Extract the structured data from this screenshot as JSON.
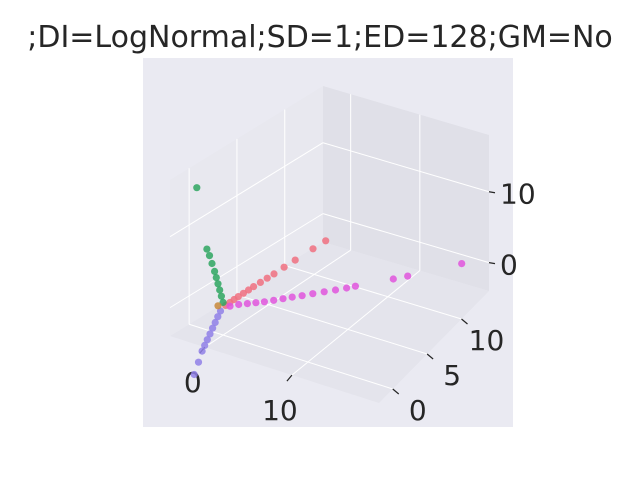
{
  "chart_data": {
    "type": "scatter",
    "projection": "3d",
    "title": ";DI=LogNormal;SD=1;ED=128;GM=No",
    "xlabel": "",
    "ylabel": "",
    "zlabel": "",
    "xlim": [
      -4,
      20
    ],
    "ylim": [
      -2,
      14
    ],
    "zlim": [
      -4,
      18
    ],
    "x_ticks": [
      "0",
      "10"
    ],
    "y_ticks": [
      "0",
      "5",
      "10"
    ],
    "z_ticks": [
      "0",
      "10"
    ],
    "grid": true,
    "series": [
      {
        "color": "#f07080",
        "points": [
          [
            0.3,
            0,
            0.3
          ],
          [
            0.8,
            0,
            0.9
          ],
          [
            1.3,
            0,
            1.5
          ],
          [
            1.8,
            0,
            2.1
          ],
          [
            2.4,
            0,
            2.8
          ],
          [
            3.0,
            0,
            3.5
          ],
          [
            3.6,
            0,
            4.2
          ],
          [
            4.4,
            0,
            5.1
          ],
          [
            5.2,
            0,
            6.0
          ],
          [
            6.0,
            0,
            6.9
          ],
          [
            7.2,
            0,
            8.3
          ],
          [
            8.5,
            0,
            9.8
          ],
          [
            10.6,
            0,
            12.2
          ],
          [
            12.1,
            0,
            13.9
          ]
        ]
      },
      {
        "color": "#e055dd",
        "points": [
          [
            0.5,
            0.3,
            0
          ],
          [
            1.0,
            0.8,
            0
          ],
          [
            1.6,
            1.2,
            0
          ],
          [
            2.2,
            1.6,
            0
          ],
          [
            2.8,
            2.0,
            0
          ],
          [
            3.4,
            2.5,
            0
          ],
          [
            4.0,
            3.0,
            0
          ],
          [
            4.6,
            3.5,
            0
          ],
          [
            5.3,
            4.0,
            0
          ],
          [
            6.0,
            4.6,
            0
          ],
          [
            6.8,
            5.2,
            0
          ],
          [
            7.6,
            5.8,
            0
          ],
          [
            8.4,
            6.4,
            0
          ],
          [
            9.0,
            6.9,
            0
          ],
          [
            11.8,
            9.0,
            0
          ],
          [
            12.9,
            9.8,
            0
          ],
          [
            17.1,
            13.0,
            0
          ]
        ]
      },
      {
        "color": "#2ea660",
        "points": [
          [
            0,
            0,
            0.6
          ],
          [
            -0.2,
            0,
            1.4
          ],
          [
            -0.4,
            0,
            2.2
          ],
          [
            -0.6,
            0,
            3.0
          ],
          [
            -0.8,
            0,
            3.8
          ],
          [
            -1.0,
            0,
            4.6
          ],
          [
            -1.3,
            0,
            5.6
          ],
          [
            -1.6,
            0,
            6.6
          ],
          [
            -1.9,
            0,
            7.4
          ],
          [
            -3.1,
            0,
            15.6
          ]
        ]
      },
      {
        "color": "#9080e8",
        "points": [
          [
            -0.2,
            -0.1,
            -0.6
          ],
          [
            -0.4,
            -0.2,
            -1.4
          ],
          [
            -0.6,
            -0.3,
            -2.2
          ],
          [
            -0.8,
            -0.4,
            -3.0
          ],
          [
            -1.0,
            -0.5,
            -3.8
          ],
          [
            -1.2,
            -0.6,
            -4.6
          ],
          [
            -1.4,
            -0.7,
            -5.4
          ],
          [
            -1.6,
            -0.8,
            -6.2
          ],
          [
            -1.9,
            -0.9,
            -7.8
          ],
          [
            -2.3,
            -1.0,
            -9.6
          ]
        ]
      },
      {
        "color": "#c8883a",
        "points": [
          [
            -0.6,
            0,
            -0.1
          ]
        ]
      }
    ]
  }
}
